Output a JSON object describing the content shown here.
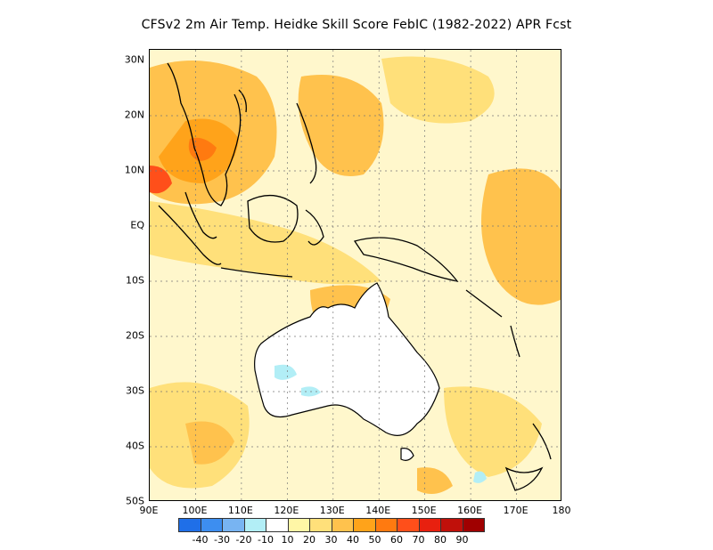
{
  "title": "CFSv2  2m Air Temp. Heidke Skill Score FebIC (1982-2022) APR Fcst",
  "lat_labels": [
    "30N",
    "20N",
    "10N",
    "EQ",
    "10S",
    "20S",
    "30S",
    "40S",
    "50S"
  ],
  "lon_labels": [
    "90E",
    "100E",
    "110E",
    "120E",
    "130E",
    "140E",
    "150E",
    "160E",
    "170E",
    "180"
  ],
  "colorbar": {
    "colors": [
      "#1f6fe8",
      "#3d8ef0",
      "#78b4f2",
      "#b2eef6",
      "#ffffff",
      "#fff6a6",
      "#ffe07a",
      "#ffc24d",
      "#ffa31a",
      "#ff7a10",
      "#ff4f1a",
      "#e8200f",
      "#c0100a",
      "#a00000"
    ],
    "labels": [
      "-40",
      "-30",
      "-20",
      "-10",
      "10",
      "20",
      "30",
      "40",
      "50",
      "60",
      "70",
      "80",
      "90"
    ]
  },
  "map": {
    "ocean_base_color": "#fff7cc",
    "skill_colors": {
      "light": "#ffe07a",
      "mid": "#ffc24d",
      "strong": "#ffa31a",
      "high": "#ff7a10",
      "max": "#ff4f1a",
      "negative": "#b2eef6"
    }
  }
}
